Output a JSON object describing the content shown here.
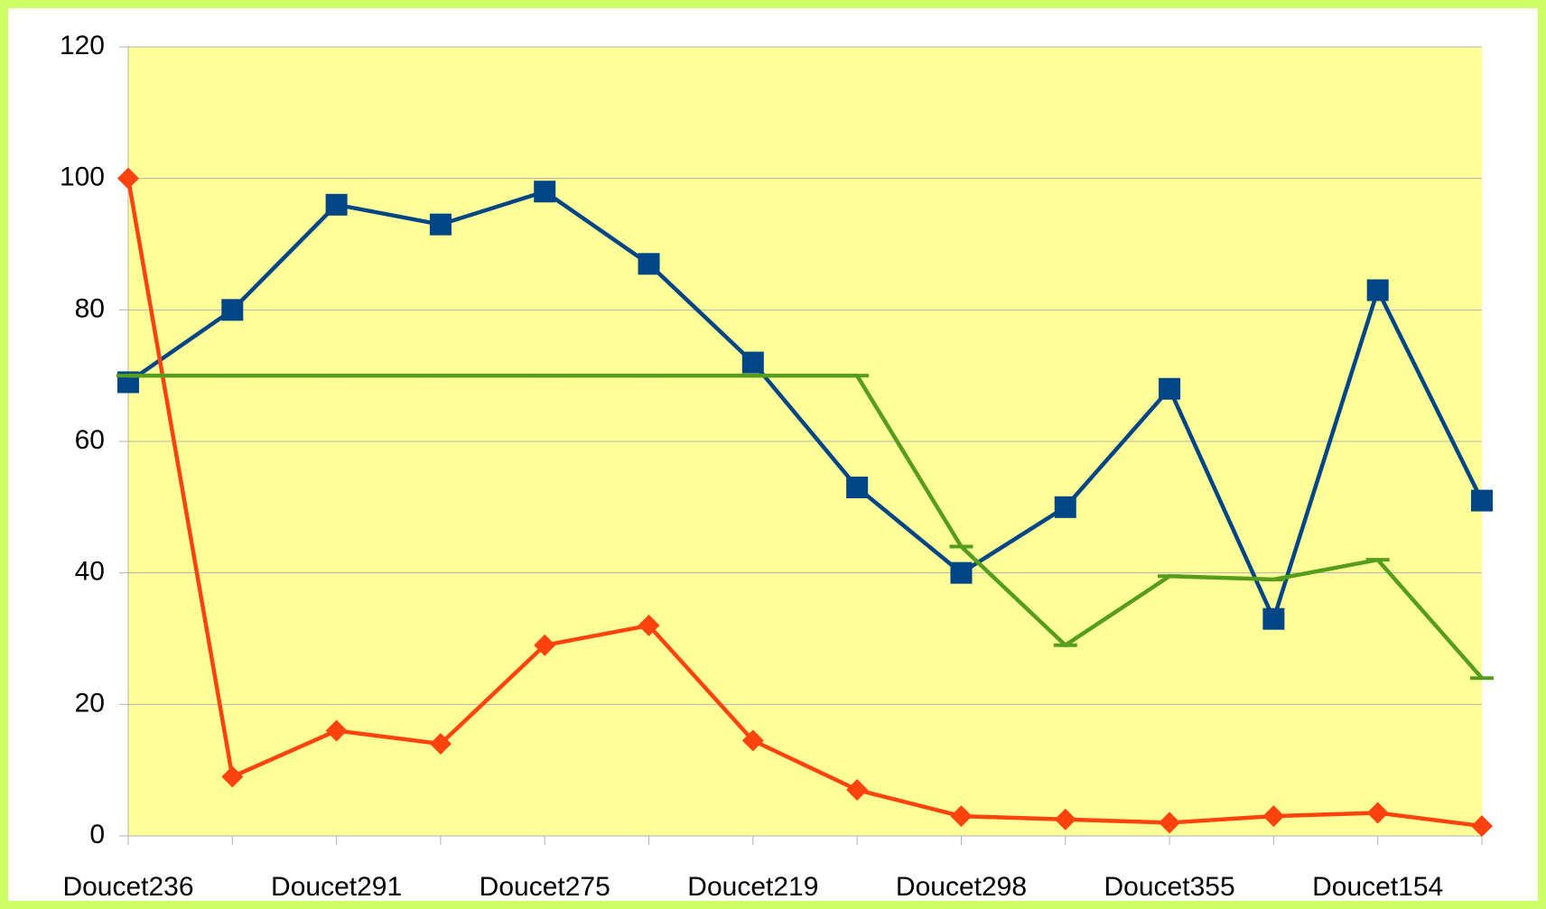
{
  "chart_data": {
    "type": "line",
    "categories": [
      "Doucet236",
      null,
      "Doucet291",
      null,
      "Doucet275",
      null,
      "Doucet219",
      null,
      "Doucet298",
      null,
      "Doucet355",
      null,
      "Doucet154",
      null
    ],
    "series": [
      {
        "color": "#004586",
        "marker": "square",
        "values": [
          69,
          80,
          96,
          93,
          98,
          87,
          72,
          53,
          40,
          50,
          68,
          33,
          83,
          51
        ]
      },
      {
        "color": "#ff420e",
        "marker": "diamond",
        "values": [
          100,
          9,
          16,
          14,
          29,
          32,
          14.5,
          7,
          3,
          2.5,
          2,
          3,
          3.5,
          1.5
        ]
      },
      {
        "color": "#579d1c",
        "marker": "dash",
        "values": [
          70,
          70,
          70,
          70,
          70,
          70,
          70,
          70,
          44,
          29,
          39.5,
          39,
          42,
          24
        ]
      }
    ],
    "ylim": [
      0,
      120
    ],
    "yticks": [
      0,
      20,
      40,
      60,
      80,
      100,
      120
    ],
    "grid": true
  }
}
